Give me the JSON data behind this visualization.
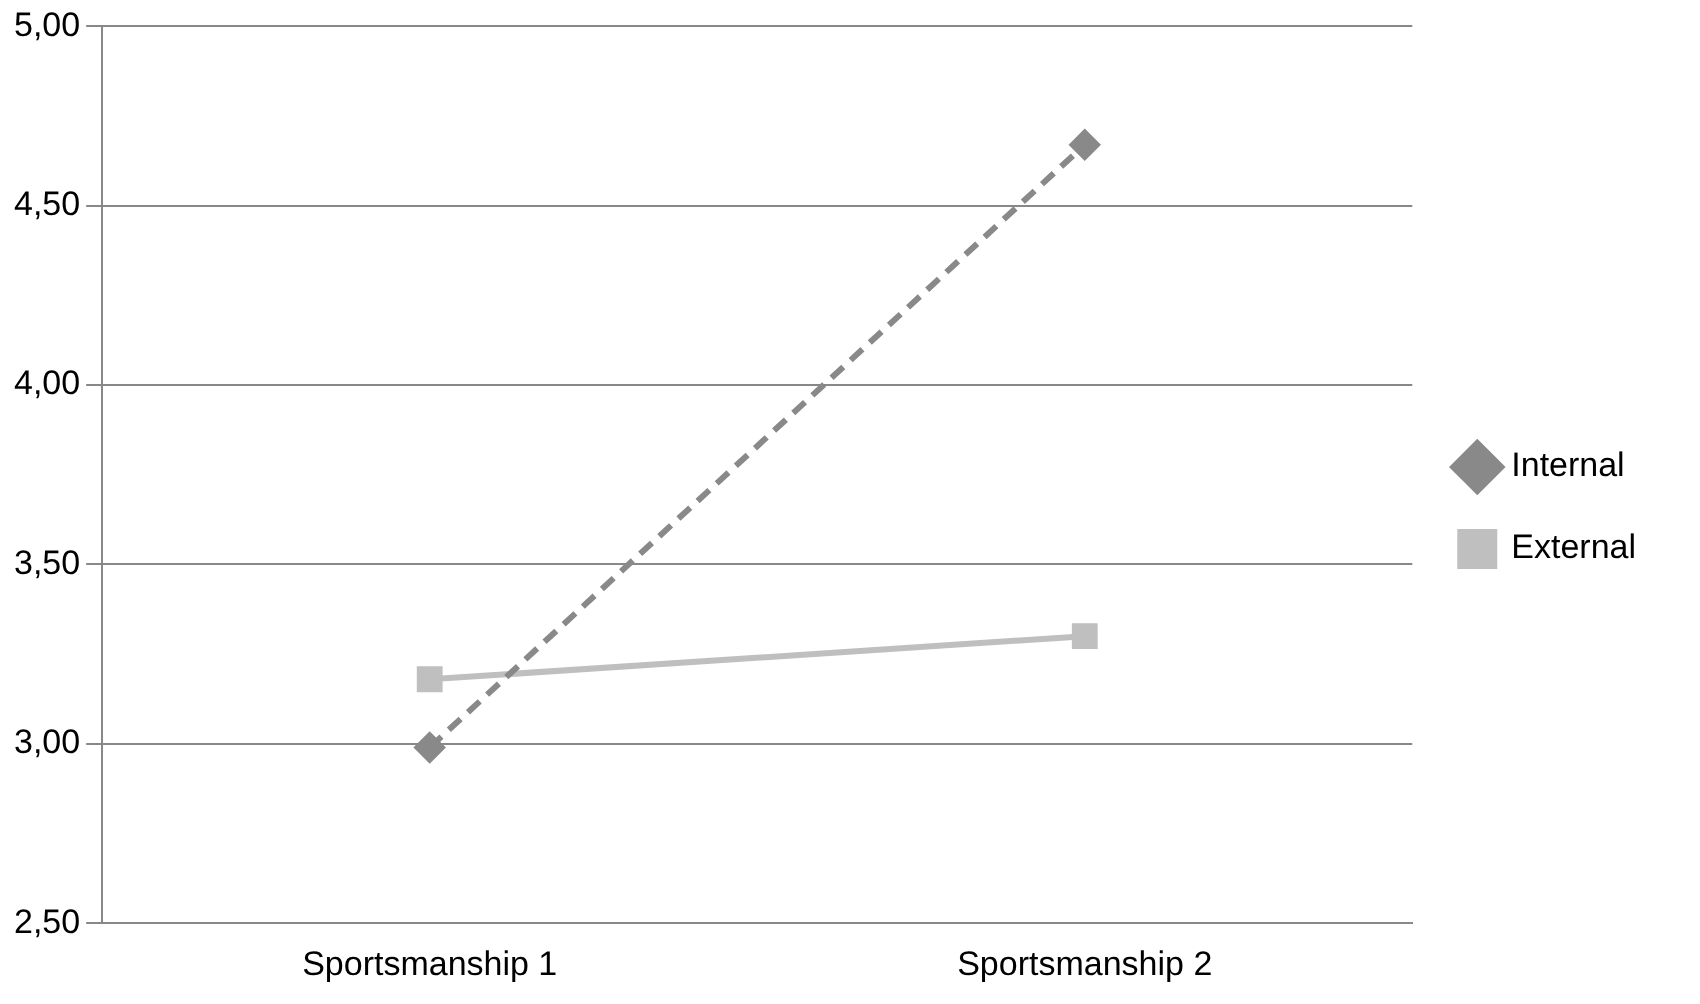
{
  "chart_data": {
    "type": "line",
    "categories": [
      "Sportsmanship 1",
      "Sportsmanship 2"
    ],
    "series": [
      {
        "name": "Internal",
        "color": "#898989",
        "values": [
          2.99,
          4.67
        ],
        "marker": "diamond",
        "line_style": "dashed"
      },
      {
        "name": "External",
        "color": "#bfbfbf",
        "values": [
          3.18,
          3.3
        ],
        "marker": "square",
        "line_style": "solid"
      }
    ],
    "ylim": [
      2.5,
      5
    ],
    "yticks": [
      {
        "value": 2.5,
        "label": "2,50"
      },
      {
        "value": 3,
        "label": "3,00"
      },
      {
        "value": 3.5,
        "label": "3,50"
      },
      {
        "value": 4,
        "label": "4,00"
      },
      {
        "value": 4.5,
        "label": "4,50"
      },
      {
        "value": 5,
        "label": "5,00"
      }
    ],
    "grid": "y",
    "legend": "right"
  }
}
